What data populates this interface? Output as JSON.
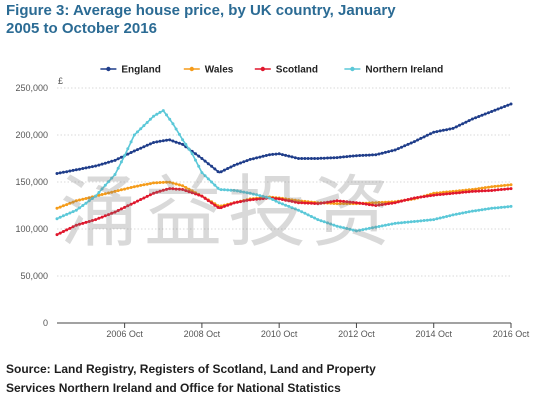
{
  "figure": {
    "title": "Figure 3: Average house price, by UK country, January 2005 to October 2016",
    "source": "Source: Land Registry, Registers of Scotland, Land and Property Services Northern Ireland and Office for National Statistics",
    "watermark": "涌益投资"
  },
  "chart_data": {
    "type": "line",
    "title": "Figure 3: Average house price, by UK country, January 2005 to October 2016",
    "xlabel": "",
    "ylabel": "£",
    "unit_label": "£",
    "ylim": [
      0,
      250000
    ],
    "yticks": [
      0,
      50000,
      100000,
      150000,
      200000,
      250000
    ],
    "ytick_labels": [
      "0",
      "50,000",
      "100,000",
      "150,000",
      "200,000",
      "250,000"
    ],
    "xlim": [
      2005.0,
      2016.75
    ],
    "xticks": [
      2006.75,
      2008.75,
      2010.75,
      2012.75,
      2014.75,
      2016.75
    ],
    "xtick_labels": [
      "2006 Oct",
      "2008 Oct",
      "2010 Oct",
      "2012 Oct",
      "2014 Oct",
      "2016 Oct"
    ],
    "grid": "horizontal",
    "legend": "top",
    "series": [
      {
        "name": "England",
        "color": "#1f3d8a",
        "points": [
          [
            2005.0,
            159000
          ],
          [
            2005.5,
            163000
          ],
          [
            2006.0,
            167000
          ],
          [
            2006.5,
            173000
          ],
          [
            2007.0,
            183000
          ],
          [
            2007.5,
            192000
          ],
          [
            2007.9,
            195000
          ],
          [
            2008.25,
            190000
          ],
          [
            2008.75,
            175000
          ],
          [
            2009.2,
            160000
          ],
          [
            2009.6,
            168000
          ],
          [
            2010.0,
            174000
          ],
          [
            2010.5,
            179000
          ],
          [
            2010.75,
            180000
          ],
          [
            2011.25,
            175000
          ],
          [
            2011.75,
            175000
          ],
          [
            2012.25,
            176000
          ],
          [
            2012.75,
            178000
          ],
          [
            2013.25,
            179000
          ],
          [
            2013.75,
            184000
          ],
          [
            2014.25,
            193000
          ],
          [
            2014.75,
            203000
          ],
          [
            2015.25,
            207000
          ],
          [
            2015.75,
            217000
          ],
          [
            2016.25,
            225000
          ],
          [
            2016.75,
            233000
          ]
        ]
      },
      {
        "name": "Wales",
        "color": "#f59c1a",
        "points": [
          [
            2005.0,
            122000
          ],
          [
            2005.5,
            130000
          ],
          [
            2006.0,
            135000
          ],
          [
            2006.5,
            140000
          ],
          [
            2007.0,
            145000
          ],
          [
            2007.5,
            149000
          ],
          [
            2007.9,
            150000
          ],
          [
            2008.25,
            146000
          ],
          [
            2008.75,
            135000
          ],
          [
            2009.2,
            124000
          ],
          [
            2009.6,
            128000
          ],
          [
            2010.0,
            132000
          ],
          [
            2010.5,
            134000
          ],
          [
            2010.75,
            133000
          ],
          [
            2011.25,
            130000
          ],
          [
            2011.75,
            128000
          ],
          [
            2012.25,
            127000
          ],
          [
            2012.75,
            127000
          ],
          [
            2013.25,
            128000
          ],
          [
            2013.75,
            129000
          ],
          [
            2014.25,
            132000
          ],
          [
            2014.75,
            138000
          ],
          [
            2015.25,
            140000
          ],
          [
            2015.75,
            142000
          ],
          [
            2016.25,
            145000
          ],
          [
            2016.75,
            147000
          ]
        ]
      },
      {
        "name": "Scotland",
        "color": "#e0172d",
        "points": [
          [
            2005.0,
            94000
          ],
          [
            2005.5,
            104000
          ],
          [
            2006.0,
            110000
          ],
          [
            2006.5,
            118000
          ],
          [
            2007.0,
            128000
          ],
          [
            2007.5,
            138000
          ],
          [
            2007.9,
            143000
          ],
          [
            2008.25,
            142000
          ],
          [
            2008.75,
            135000
          ],
          [
            2009.2,
            122000
          ],
          [
            2009.6,
            128000
          ],
          [
            2010.0,
            131000
          ],
          [
            2010.5,
            133000
          ],
          [
            2010.75,
            132000
          ],
          [
            2011.25,
            128000
          ],
          [
            2011.75,
            127000
          ],
          [
            2012.25,
            130000
          ],
          [
            2012.75,
            128000
          ],
          [
            2013.25,
            125000
          ],
          [
            2013.75,
            128000
          ],
          [
            2014.25,
            133000
          ],
          [
            2014.75,
            136000
          ],
          [
            2015.25,
            138000
          ],
          [
            2015.75,
            140000
          ],
          [
            2016.25,
            141000
          ],
          [
            2016.75,
            143000
          ]
        ]
      },
      {
        "name": "Northern Ireland",
        "color": "#5bc8d8",
        "points": [
          [
            2005.0,
            111000
          ],
          [
            2005.5,
            120000
          ],
          [
            2006.0,
            135000
          ],
          [
            2006.5,
            158000
          ],
          [
            2006.75,
            178000
          ],
          [
            2007.0,
            200000
          ],
          [
            2007.5,
            220000
          ],
          [
            2007.75,
            226000
          ],
          [
            2008.0,
            212000
          ],
          [
            2008.25,
            195000
          ],
          [
            2008.5,
            180000
          ],
          [
            2008.75,
            160000
          ],
          [
            2009.2,
            142000
          ],
          [
            2009.6,
            141000
          ],
          [
            2010.0,
            138000
          ],
          [
            2010.5,
            133000
          ],
          [
            2010.75,
            128000
          ],
          [
            2011.25,
            120000
          ],
          [
            2011.75,
            110000
          ],
          [
            2012.25,
            103000
          ],
          [
            2012.75,
            98000
          ],
          [
            2013.25,
            102000
          ],
          [
            2013.75,
            106000
          ],
          [
            2014.25,
            108000
          ],
          [
            2014.75,
            110000
          ],
          [
            2015.25,
            115000
          ],
          [
            2015.75,
            119000
          ],
          [
            2016.25,
            122000
          ],
          [
            2016.75,
            124000
          ]
        ]
      }
    ]
  }
}
